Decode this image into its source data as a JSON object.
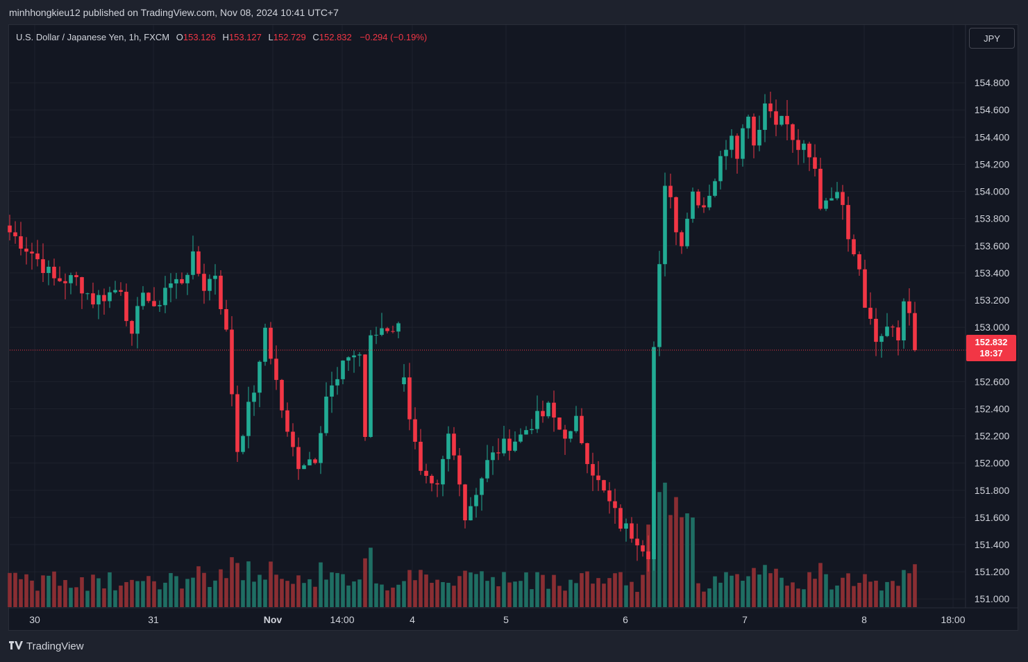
{
  "header": {
    "published_text": "minhhongkieu12 published on TradingView.com, Nov 08, 2024 10:41 UTC+7"
  },
  "legend": {
    "symbol": "U.S. Dollar / Japanese Yen, 1h, FXCM",
    "o_label": "O",
    "o_value": "153.126",
    "h_label": "H",
    "h_value": "153.127",
    "l_label": "L",
    "l_value": "152.729",
    "c_label": "C",
    "c_value": "152.832",
    "change": "−0.294 (−0.19%)"
  },
  "currency_button": "JPY",
  "last_price": {
    "price": "152.832",
    "countdown": "18:37"
  },
  "footer": {
    "brand": "TradingView",
    "logo_icon": "tradingview-logo-icon"
  },
  "colors": {
    "up": "#22ab94",
    "down": "#f23645",
    "vol_up": "#1f6e63",
    "vol_down": "#8a2e33",
    "background": "#131722"
  },
  "chart_data": {
    "type": "candlestick",
    "symbol": "USDJPY",
    "interval": "1h",
    "ylim": [
      150.95,
      155.0
    ],
    "y_ticks": [
      "154.800",
      "154.600",
      "154.400",
      "154.200",
      "154.000",
      "153.800",
      "153.600",
      "153.400",
      "153.200",
      "153.000",
      "152.600",
      "152.400",
      "152.200",
      "152.000",
      "151.800",
      "151.600",
      "151.400",
      "151.200",
      "151.000"
    ],
    "x_ticks": [
      "30",
      "31",
      "Nov",
      "14:00",
      "4",
      "5",
      "6",
      "7",
      "8",
      "18:00"
    ],
    "last_price": 152.832,
    "anchors": [
      [
        0,
        153.7
      ],
      [
        4,
        153.55
      ],
      [
        8,
        153.35
      ],
      [
        12,
        153.35
      ],
      [
        15,
        153.2
      ],
      [
        18,
        153.25
      ],
      [
        20,
        153.3
      ],
      [
        22,
        152.9
      ],
      [
        24,
        153.3
      ],
      [
        26,
        153.1
      ],
      [
        28,
        153.3
      ],
      [
        31,
        153.35
      ],
      [
        33,
        153.5
      ],
      [
        35,
        153.3
      ],
      [
        37,
        153.4
      ],
      [
        39,
        152.95
      ],
      [
        41,
        152.1
      ],
      [
        43,
        152.4
      ],
      [
        45,
        152.7
      ],
      [
        46,
        153.0
      ],
      [
        48,
        152.6
      ],
      [
        50,
        152.2
      ],
      [
        52,
        152.0
      ],
      [
        55,
        152.05
      ],
      [
        57,
        152.5
      ],
      [
        59,
        152.6
      ],
      [
        61,
        152.8
      ],
      [
        63,
        152.8
      ],
      [
        64,
        152.2
      ],
      [
        65,
        152.9
      ],
      [
        67,
        153.0
      ],
      [
        70,
        153.0
      ],
      [
        72,
        152.35
      ],
      [
        74,
        151.9
      ],
      [
        76,
        151.8
      ],
      [
        77,
        151.8
      ],
      [
        79,
        152.2
      ],
      [
        81,
        151.9
      ],
      [
        82,
        151.6
      ],
      [
        84,
        151.8
      ],
      [
        86,
        152.0
      ],
      [
        88,
        152.1
      ],
      [
        90,
        152.15
      ],
      [
        92,
        152.2
      ],
      [
        94,
        152.3
      ],
      [
        96,
        152.35
      ],
      [
        97,
        152.4
      ],
      [
        99,
        152.25
      ],
      [
        101,
        152.2
      ],
      [
        102,
        152.3
      ],
      [
        104,
        152.05
      ],
      [
        106,
        151.85
      ],
      [
        108,
        151.7
      ],
      [
        110,
        151.55
      ],
      [
        113,
        151.45
      ],
      [
        115,
        151.35
      ],
      [
        116,
        152.85
      ],
      [
        118,
        154.0
      ],
      [
        119,
        154.0
      ],
      [
        120,
        153.7
      ],
      [
        121,
        153.65
      ],
      [
        123,
        154.0
      ],
      [
        125,
        153.9
      ],
      [
        127,
        154.1
      ],
      [
        129,
        154.35
      ],
      [
        130,
        154.45
      ],
      [
        131,
        154.3
      ],
      [
        133,
        154.6
      ],
      [
        134,
        154.35
      ],
      [
        136,
        154.65
      ],
      [
        138,
        154.55
      ],
      [
        140,
        154.5
      ],
      [
        141,
        154.35
      ],
      [
        143,
        154.3
      ],
      [
        145,
        154.15
      ],
      [
        146,
        153.9
      ],
      [
        148,
        154.0
      ],
      [
        149,
        153.95
      ],
      [
        150,
        153.95
      ],
      [
        151,
        153.7
      ],
      [
        153,
        153.45
      ],
      [
        154,
        153.2
      ],
      [
        156,
        152.9
      ],
      [
        158,
        153.0
      ],
      [
        160,
        152.9
      ],
      [
        161,
        153.2
      ],
      [
        162,
        153.15
      ],
      [
        163,
        152.85
      ]
    ],
    "hours": 164,
    "seed": 7,
    "volume_scale": "relative"
  }
}
